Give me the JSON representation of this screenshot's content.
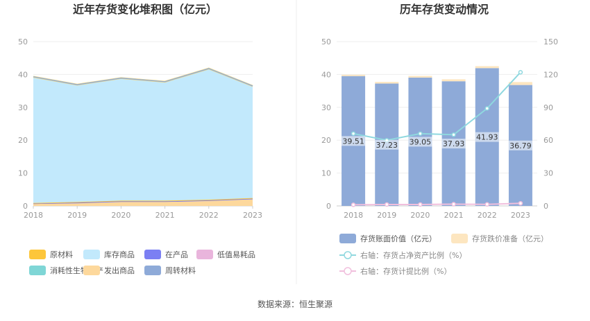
{
  "source": "数据来源：恒生聚源",
  "chart_data": [
    {
      "type": "area",
      "title": "近年存货变化堆积图（亿元）",
      "x": [
        "2018",
        "2019",
        "2020",
        "2021",
        "2022",
        "2023"
      ],
      "ylim": [
        0,
        50
      ],
      "yticks": [
        "0",
        "10",
        "20",
        "30",
        "40",
        "50"
      ],
      "stacked": true,
      "legend_position": "bottom",
      "series": [
        {
          "name": "原材料",
          "color": "#fdc63b",
          "values": [
            0.2,
            0.2,
            0.2,
            0.2,
            0.2,
            0.2
          ]
        },
        {
          "name": "库存商品",
          "color": "#c2e9fc",
          "values": [
            38.4,
            35.7,
            37.3,
            36.2,
            39.9,
            34.1
          ]
        },
        {
          "name": "在产品",
          "color": "#7b7ff3",
          "values": [
            0.1,
            0.2,
            0.2,
            0.2,
            0.2,
            0.2
          ]
        },
        {
          "name": "低值易耗品",
          "color": "#e9b5dc",
          "values": [
            0.0,
            0.0,
            0.0,
            0.0,
            0.0,
            0.0
          ]
        },
        {
          "name": "消耗性生物资产",
          "color": "#7fd6d6",
          "values": [
            0.0,
            0.0,
            0.0,
            0.0,
            0.0,
            0.0
          ]
        },
        {
          "name": "发出商品",
          "color": "#fdd89c",
          "values": [
            0.6,
            0.8,
            1.2,
            1.2,
            1.5,
            2.0
          ]
        },
        {
          "name": "周转材料",
          "color": "#8eaad8",
          "values": [
            0.0,
            0.0,
            0.0,
            0.0,
            0.0,
            0.0
          ]
        }
      ]
    },
    {
      "type": "bar",
      "title": "历年存货变动情况",
      "categories": [
        "2018",
        "2019",
        "2020",
        "2021",
        "2022",
        "2023"
      ],
      "ylim": [
        0,
        50
      ],
      "yticks": [
        "0",
        "10",
        "20",
        "30",
        "40",
        "50"
      ],
      "y2lim": [
        0,
        150
      ],
      "y2ticks": [
        "0",
        "30",
        "60",
        "90",
        "120",
        "150"
      ],
      "legend_position": "bottom",
      "series": [
        {
          "name": "存货账面价值（亿元）",
          "type": "bar",
          "color": "#8eaad8",
          "values": [
            39.51,
            37.23,
            39.05,
            37.93,
            41.93,
            36.79
          ],
          "labels": [
            "39.51",
            "37.23",
            "39.05",
            "37.93",
            "41.93",
            "36.79"
          ]
        },
        {
          "name": "存货跌价准备（亿元）",
          "type": "bar",
          "color": "#fde6c0",
          "values": [
            0.4,
            0.5,
            0.5,
            0.6,
            0.6,
            0.9
          ]
        },
        {
          "name": "右轴：存货占净资产比例（%）",
          "type": "line",
          "axis": "right",
          "color": "#8fd8df",
          "values": [
            66,
            60,
            66,
            65,
            89,
            122
          ]
        },
        {
          "name": "右轴：存货计提比例（%）",
          "type": "line",
          "axis": "right",
          "color": "#f1bfdd",
          "values": [
            1.0,
            1.3,
            1.3,
            1.6,
            1.4,
            2.4
          ]
        }
      ]
    }
  ]
}
